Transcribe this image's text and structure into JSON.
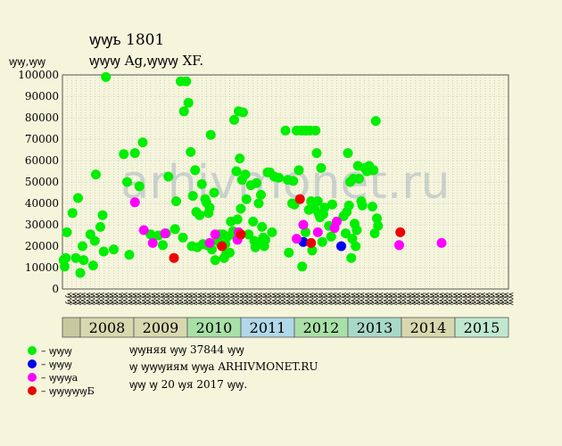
{
  "chart_data": {
    "type": "scatter",
    "title": "ꝡꝡь 1801",
    "subtitle": "ꝡꝡꝡ Ag,ꝡꝡꝡ XF.",
    "ylabel": "ꝡꝡ,ꝡꝡ",
    "ylim": [
      0,
      100000
    ],
    "yticks": [
      0,
      10000,
      20000,
      30000,
      40000,
      50000,
      60000,
      70000,
      80000,
      90000,
      100000
    ],
    "grid": true,
    "watermark": "ARHIVMONET.RU",
    "x_sublabels": [
      "ꝡꝡ",
      "ꝡꝡ",
      "ꝡꝡ",
      "ꝡꝡ",
      "ꝡꝡ",
      "ꝡꝡ",
      "ꝡꝡ",
      "ꝡꝡ",
      "ꝡꝡ",
      "ꝡꝡ",
      "ꝡꝡ",
      "ꝡꝡ",
      "ꝡꝡ",
      "ꝡꝡ",
      "ꝡꝡ",
      "ꝡꝡ",
      "ꝡꝡ",
      "ꝡꝡ",
      "ꝡꝡ",
      "ꝡꝡ",
      "ꝡꝡ",
      "ꝡꝡ",
      "ꝡꝡ",
      "ꝡꝡ",
      "ꝡꝡ",
      "ꝡꝡ",
      "ꝡꝡ",
      "ꝡꝡ",
      "ꝡꝡ",
      "ꝡꝡ",
      "ꝡꝡ",
      "ꝡꝡ",
      "ꝡꝡ",
      "ꝡꝡ",
      "ꝡꝡ",
      "ꝡꝡ",
      "ꝡꝡ",
      "ꝡꝡ",
      "ꝡꝡ",
      "ꝡꝡ",
      "ꝡꝡ",
      "ꝡꝡ",
      "ꝡꝡ",
      "ꝡꝡ",
      "ꝡꝡ",
      "ꝡꝡ",
      "ꝡꝡ",
      "ꝡꝡ",
      "ꝡꝡ",
      "ꝡꝡ",
      "ꝡꝡ",
      "ꝡꝡ",
      "ꝡꝡ",
      "ꝡꝡ",
      "ꝡꝡ",
      "ꝡꝡ",
      "ꝡꝡ",
      "ꝡꝡ",
      "ꝡꝡ",
      "ꝡꝡ",
      "ꝡꝡ",
      "ꝡꝡ",
      "ꝡꝡ",
      "ꝡꝡ",
      "ꝡꝡ",
      "ꝡꝡ",
      "ꝡꝡ",
      "ꝡꝡ",
      "ꝡꝡ",
      "ꝡꝡ",
      "ꝡꝡ",
      "ꝡꝡ",
      "ꝡꝡ",
      "ꝡꝡ",
      "ꝡꝡ",
      "ꝡꝡ",
      "ꝡꝡ",
      "ꝡꝡ",
      "ꝡꝡ",
      "ꝡꝡ",
      "ꝡꝡ",
      "ꝡꝡ",
      "ꝡꝡ",
      "ꝡꝡ",
      "ꝡꝡ",
      "ꝡꝡ",
      "ꝡꝡ",
      "ꝡꝡ",
      "ꝡꝡ",
      "ꝡꝡ",
      "ꝡꝡ",
      "ꝡꝡ",
      "ꝡꝡ",
      "ꝡꝡ",
      "ꝡꝡ",
      "ꝡꝡ"
    ],
    "years": [
      {
        "label": "2008",
        "color": "#d8d8b0"
      },
      {
        "label": "2009",
        "color": "#d8d8b0"
      },
      {
        "label": "2010",
        "color": "#a8e0a8"
      },
      {
        "label": "2011",
        "color": "#b0d8e8"
      },
      {
        "label": "2012",
        "color": "#a8e0a8"
      },
      {
        "label": "2013",
        "color": "#a8d8c8"
      },
      {
        "label": "2014",
        "color": "#d8d8b0"
      },
      {
        "label": "2015",
        "color": "#c0e8d0"
      }
    ],
    "series": [
      {
        "name": "– ꝡꝡꝡ",
        "color": "#00ee00",
        "points": [
          [
            2008.02,
            13500
          ],
          [
            2008.04,
            10500
          ],
          [
            2008.06,
            14500
          ],
          [
            2008.08,
            26500
          ],
          [
            2008.18,
            35500
          ],
          [
            2008.24,
            14500
          ],
          [
            2008.28,
            42500
          ],
          [
            2008.32,
            7500
          ],
          [
            2008.36,
            20000
          ],
          [
            2008.38,
            13500
          ],
          [
            2008.5,
            25500
          ],
          [
            2008.55,
            11000
          ],
          [
            2008.58,
            22500
          ],
          [
            2008.6,
            53500
          ],
          [
            2008.68,
            29000
          ],
          [
            2008.72,
            34500
          ],
          [
            2008.74,
            17500
          ],
          [
            2008.78,
            99000
          ],
          [
            2008.92,
            18500
          ],
          [
            2009.1,
            63000
          ],
          [
            2009.16,
            50000
          ],
          [
            2009.2,
            16000
          ],
          [
            2009.3,
            63500
          ],
          [
            2009.38,
            48000
          ],
          [
            2009.44,
            68500
          ],
          [
            2009.58,
            25500
          ],
          [
            2009.72,
            25000
          ],
          [
            2009.8,
            20500
          ],
          [
            2009.86,
            26000
          ],
          [
            2009.9,
            52500
          ],
          [
            2010.02,
            28000
          ],
          [
            2010.04,
            41000
          ],
          [
            2010.12,
            97000
          ],
          [
            2010.16,
            24000
          ],
          [
            2010.18,
            83000
          ],
          [
            2010.22,
            97000
          ],
          [
            2010.26,
            87000
          ],
          [
            2010.3,
            64000
          ],
          [
            2010.32,
            20000
          ],
          [
            2010.34,
            43500
          ],
          [
            2010.38,
            55500
          ],
          [
            2010.4,
            36000
          ],
          [
            2010.42,
            19500
          ],
          [
            2010.46,
            34500
          ],
          [
            2010.5,
            49000
          ],
          [
            2010.52,
            21000
          ],
          [
            2010.56,
            42000
          ],
          [
            2010.58,
            40500
          ],
          [
            2010.6,
            20500
          ],
          [
            2010.62,
            35500
          ],
          [
            2010.64,
            38000
          ],
          [
            2010.66,
            72000
          ],
          [
            2010.68,
            18500
          ],
          [
            2010.72,
            45000
          ],
          [
            2010.74,
            13500
          ],
          [
            2010.78,
            22500
          ],
          [
            2010.82,
            25500
          ],
          [
            2010.84,
            21000
          ],
          [
            2010.88,
            25500
          ],
          [
            2010.9,
            14500
          ],
          [
            2010.92,
            21000
          ],
          [
            2010.94,
            16500
          ],
          [
            2010.96,
            24500
          ],
          [
            2011.0,
            17000
          ],
          [
            2011.02,
            31500
          ],
          [
            2011.06,
            27000
          ],
          [
            2011.08,
            79000
          ],
          [
            2011.1,
            25000
          ],
          [
            2011.12,
            55000
          ],
          [
            2011.14,
            32500
          ],
          [
            2011.16,
            83000
          ],
          [
            2011.18,
            61000
          ],
          [
            2011.2,
            37500
          ],
          [
            2011.22,
            51000
          ],
          [
            2011.24,
            82500
          ],
          [
            2011.28,
            53500
          ],
          [
            2011.3,
            42000
          ],
          [
            2011.34,
            25500
          ],
          [
            2011.38,
            48500
          ],
          [
            2011.42,
            31500
          ],
          [
            2011.44,
            22500
          ],
          [
            2011.46,
            19500
          ],
          [
            2011.48,
            49500
          ],
          [
            2011.52,
            40000
          ],
          [
            2011.54,
            22000
          ],
          [
            2011.56,
            44000
          ],
          [
            2011.58,
            29000
          ],
          [
            2011.6,
            24000
          ],
          [
            2011.62,
            20000
          ],
          [
            2011.64,
            23000
          ],
          [
            2011.68,
            54500
          ],
          [
            2011.72,
            54500
          ],
          [
            2011.76,
            26500
          ],
          [
            2011.8,
            52500
          ],
          [
            2011.88,
            52000
          ],
          [
            2012.0,
            74000
          ],
          [
            2012.04,
            51000
          ],
          [
            2012.06,
            17000
          ],
          [
            2012.12,
            40000
          ],
          [
            2012.14,
            50500
          ],
          [
            2012.16,
            39500
          ],
          [
            2012.2,
            74000
          ],
          [
            2012.24,
            55500
          ],
          [
            2012.28,
            74000
          ],
          [
            2012.3,
            10500
          ],
          [
            2012.34,
            74000
          ],
          [
            2012.36,
            26500
          ],
          [
            2012.38,
            74000
          ],
          [
            2012.42,
            37000
          ],
          [
            2012.44,
            74000
          ],
          [
            2012.46,
            41000
          ],
          [
            2012.48,
            18000
          ],
          [
            2012.5,
            39500
          ],
          [
            2012.52,
            37500
          ],
          [
            2012.54,
            74000
          ],
          [
            2012.56,
            63500
          ],
          [
            2012.58,
            41000
          ],
          [
            2012.6,
            35000
          ],
          [
            2012.62,
            33500
          ],
          [
            2012.64,
            56500
          ],
          [
            2012.66,
            22000
          ],
          [
            2012.68,
            35000
          ],
          [
            2012.7,
            38000
          ],
          [
            2012.78,
            29500
          ],
          [
            2012.82,
            24500
          ],
          [
            2012.84,
            39500
          ],
          [
            2013.04,
            34000
          ],
          [
            2013.08,
            26000
          ],
          [
            2013.1,
            36000
          ],
          [
            2013.12,
            63500
          ],
          [
            2013.14,
            39000
          ],
          [
            2013.16,
            50000
          ],
          [
            2013.18,
            14500
          ],
          [
            2013.2,
            23500
          ],
          [
            2013.22,
            51500
          ],
          [
            2013.24,
            30500
          ],
          [
            2013.26,
            20000
          ],
          [
            2013.28,
            27500
          ],
          [
            2013.3,
            57500
          ],
          [
            2013.32,
            51500
          ],
          [
            2013.36,
            41000
          ],
          [
            2013.38,
            39000
          ],
          [
            2013.42,
            56500
          ],
          [
            2013.46,
            55000
          ],
          [
            2013.5,
            57500
          ],
          [
            2013.54,
            56000
          ],
          [
            2013.56,
            38500
          ],
          [
            2013.58,
            55500
          ],
          [
            2013.6,
            26000
          ],
          [
            2013.62,
            78500
          ],
          [
            2013.64,
            33000
          ],
          [
            2013.66,
            29500
          ]
        ]
      },
      {
        "name": "– ꝡꝡꝡ",
        "color": "#0000ee",
        "points": [
          [
            2012.32,
            22000
          ],
          [
            2013.0,
            20000
          ]
        ]
      },
      {
        "name": "– ꝡꝡꝡa",
        "color": "#ff00ff",
        "points": [
          [
            2009.3,
            40500
          ],
          [
            2009.46,
            27500
          ],
          [
            2009.62,
            21500
          ],
          [
            2009.84,
            26000
          ],
          [
            2010.64,
            21500
          ],
          [
            2010.74,
            25500
          ],
          [
            2011.14,
            23000
          ],
          [
            2011.16,
            26500
          ],
          [
            2012.2,
            23500
          ],
          [
            2012.32,
            30000
          ],
          [
            2012.58,
            26500
          ],
          [
            2012.88,
            28500
          ],
          [
            2012.92,
            31500
          ],
          [
            2014.04,
            20500
          ],
          [
            2014.8,
            21500
          ]
        ]
      },
      {
        "name": "– ꝡꝡꝡꝡꝡБ",
        "color": "#ee0000",
        "points": [
          [
            2010.0,
            14500
          ],
          [
            2010.86,
            20000
          ],
          [
            2011.2,
            25500
          ],
          [
            2012.26,
            42000
          ],
          [
            2012.46,
            21500
          ],
          [
            2014.06,
            26500
          ]
        ]
      }
    ]
  },
  "info": {
    "line1": "ꝡꝡняя ꝡꝡ 37844 ꝡꝡ",
    "line2": "ꝡ ꝡꝡꝡиям ꝡꝡa ARHIVMONET.RU",
    "line3": "ꝡꝡ ꝡ 20 ꝡя 2017 ꝡꝡ."
  }
}
